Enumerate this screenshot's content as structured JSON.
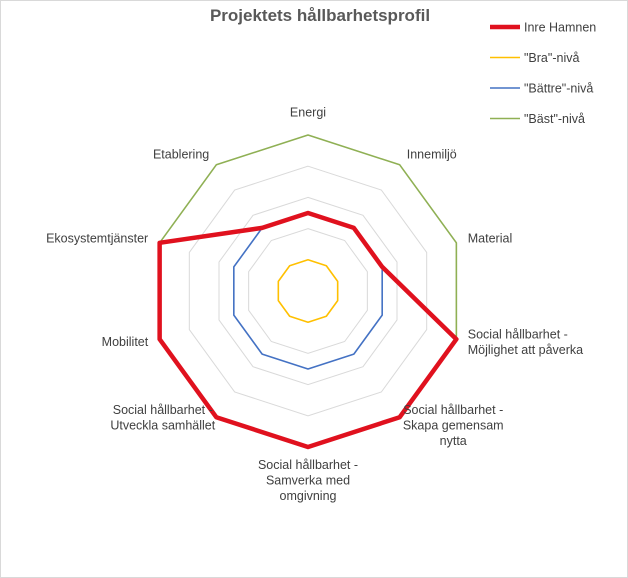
{
  "chart_data": {
    "type": "radar",
    "title": "Projektets hållbarhetsprofil",
    "categories": [
      "Energi",
      "Innemiljö",
      "Material",
      "Social hållbarhet - Möjlighet att påverka",
      "Social hållbarhet - Skapa gemensam nytta",
      "Social hållbarhet - Samverka med omgivning",
      "Social hållbarhet - Utveckla samhället",
      "Mobilitet",
      "Ekosystemtjänster",
      "Etablering"
    ],
    "category_lines": [
      [
        "Energi"
      ],
      [
        "Innemiljö"
      ],
      [
        "Material"
      ],
      [
        "Social hållbarhet -",
        "Möjlighet att påverka"
      ],
      [
        "Social hållbarhet -",
        "Skapa gemensam",
        "nytta"
      ],
      [
        "Social hållbarhet -",
        "Samverka med",
        "omgivning"
      ],
      [
        "Social hållbarhet -",
        "Utveckla samhället"
      ],
      [
        "Mobilitet"
      ],
      [
        "Ekosystemtjänster"
      ],
      [
        "Etablering"
      ]
    ],
    "rlim": [
      0,
      5
    ],
    "grid": true,
    "legend_position": "top-right",
    "series": [
      {
        "name": "Inre Hamnen",
        "color": "#e0111e",
        "values": [
          2.5,
          2.5,
          2.5,
          5,
          5,
          5,
          5,
          5,
          5,
          2.5
        ]
      },
      {
        "name": "\"Bra\"-nivå",
        "color": "#ffc000",
        "values": [
          1,
          1,
          1,
          1,
          1,
          1,
          1,
          1,
          1,
          1
        ]
      },
      {
        "name": "\"Bättre\"-nivå",
        "color": "#4472c4",
        "values": [
          2.5,
          2.5,
          2.5,
          2.5,
          2.5,
          2.5,
          2.5,
          2.5,
          2.5,
          2.5
        ]
      },
      {
        "name": "\"Bäst\"-nivå",
        "color": "#8fb054",
        "values": [
          5,
          5,
          5,
          5,
          5,
          5,
          5,
          5,
          5,
          5
        ]
      }
    ]
  }
}
